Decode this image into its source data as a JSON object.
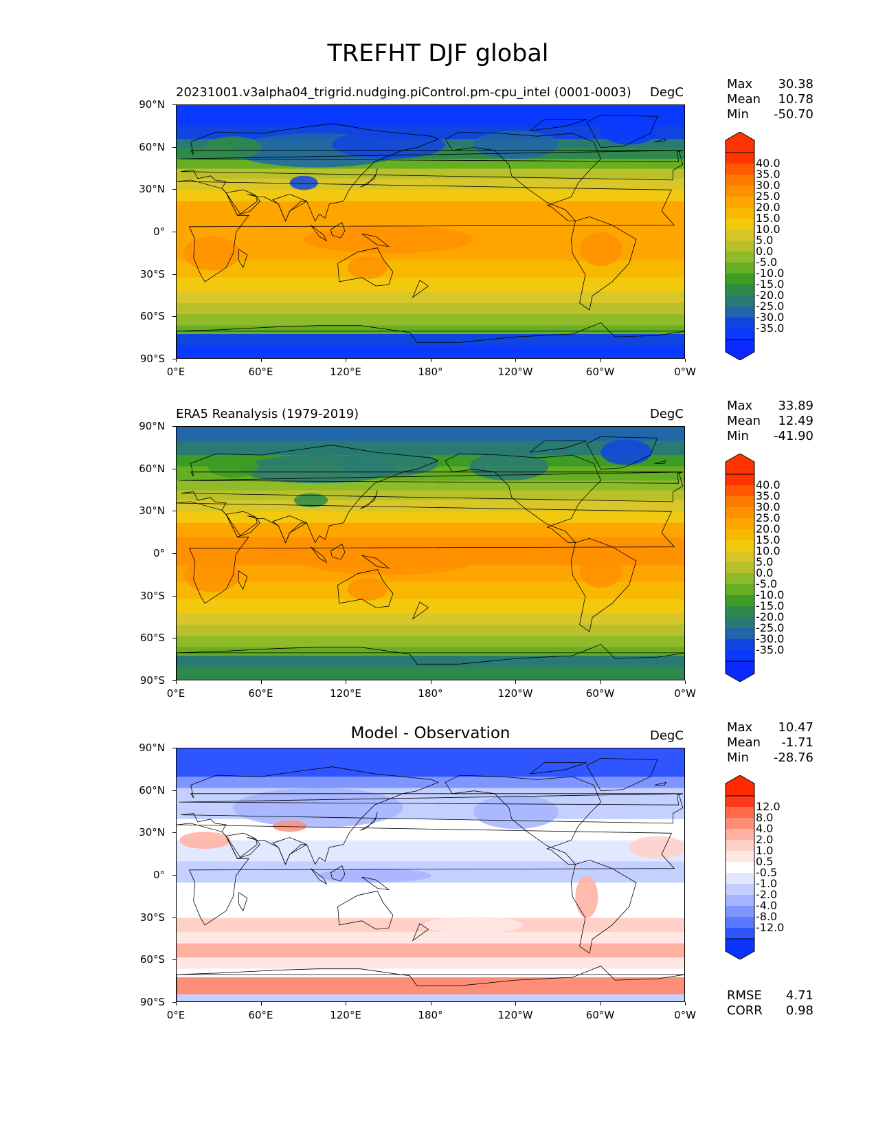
{
  "figure": {
    "title": "TREFHT DJF global"
  },
  "axes": {
    "y_ticks": [
      "90°N",
      "60°N",
      "30°N",
      "0°",
      "30°S",
      "60°S",
      "90°S"
    ],
    "x_ticks": [
      "0°E",
      "60°E",
      "120°E",
      "180°",
      "120°W",
      "60°W",
      "0°W"
    ]
  },
  "panels": [
    {
      "title": "20231001.v3alpha04_trigrid.nudging.piControl.pm-cpu_intel (0001-0003)",
      "units": "DegC",
      "stats": [
        {
          "label": "Max",
          "value": "30.38"
        },
        {
          "label": "Mean",
          "value": "10.78"
        },
        {
          "label": "Min",
          "value": "-50.70"
        }
      ],
      "colorbar": {
        "labels": [
          "40.0",
          "35.0",
          "30.0",
          "25.0",
          "20.0",
          "15.0",
          "10.0",
          "5.0",
          "0.0",
          "-5.0",
          "-10.0",
          "-15.0",
          "-20.0",
          "-25.0",
          "-30.0",
          "-35.0"
        ],
        "colors": [
          "#ff3300",
          "#ff5a00",
          "#ff7a00",
          "#ff9000",
          "#ffa500",
          "#f9b800",
          "#f2c90f",
          "#d9c72a",
          "#b8c12a",
          "#8fba2a",
          "#66ae22",
          "#3c9c24",
          "#2e8a4a",
          "#2a7a74",
          "#2166a8",
          "#1045e0",
          "#0a3aff"
        ],
        "top_color": "#ff3300",
        "bottom_color": "#0a2aff"
      }
    },
    {
      "title": "ERA5 Reanalysis (1979-2019)",
      "units": "DegC",
      "stats": [
        {
          "label": "Max",
          "value": "33.89"
        },
        {
          "label": "Mean",
          "value": "12.49"
        },
        {
          "label": "Min",
          "value": "-41.90"
        }
      ],
      "colorbar": {
        "labels": [
          "40.0",
          "35.0",
          "30.0",
          "25.0",
          "20.0",
          "15.0",
          "10.0",
          "5.0",
          "0.0",
          "-5.0",
          "-10.0",
          "-15.0",
          "-20.0",
          "-25.0",
          "-30.0",
          "-35.0"
        ],
        "colors": [
          "#ff3300",
          "#ff5a00",
          "#ff7a00",
          "#ff9000",
          "#ffa500",
          "#f9b800",
          "#f2c90f",
          "#d9c72a",
          "#b8c12a",
          "#8fba2a",
          "#66ae22",
          "#3c9c24",
          "#2e8a4a",
          "#2a7a74",
          "#2166a8",
          "#1045e0",
          "#0a3aff"
        ],
        "top_color": "#ff3300",
        "bottom_color": "#0a2aff"
      }
    },
    {
      "title": "Model - Observation",
      "units": "DegC",
      "stats": [
        {
          "label": "Max",
          "value": "10.47"
        },
        {
          "label": "Mean",
          "value": "-1.71"
        },
        {
          "label": "Min",
          "value": "-28.76"
        }
      ],
      "colorbar": {
        "labels": [
          "12.0",
          "8.0",
          "4.0",
          "2.0",
          "1.0",
          "0.5",
          "-0.5",
          "-1.0",
          "-2.0",
          "-4.0",
          "-8.0",
          "-12.0"
        ],
        "colors": [
          "#ff3a1a",
          "#ff6a4a",
          "#ff8e78",
          "#ffb0a0",
          "#ffd0c8",
          "#ffe8e4",
          "#ffffff",
          "#e2e8ff",
          "#c4d0ff",
          "#a4b4ff",
          "#7f96ff",
          "#5878ff",
          "#2f55ff"
        ],
        "top_color": "#ff2a00",
        "bottom_color": "#0a33ff"
      },
      "metrics": [
        {
          "label": "RMSE",
          "value": "4.71"
        },
        {
          "label": "CORR",
          "value": "0.98"
        }
      ]
    }
  ]
}
